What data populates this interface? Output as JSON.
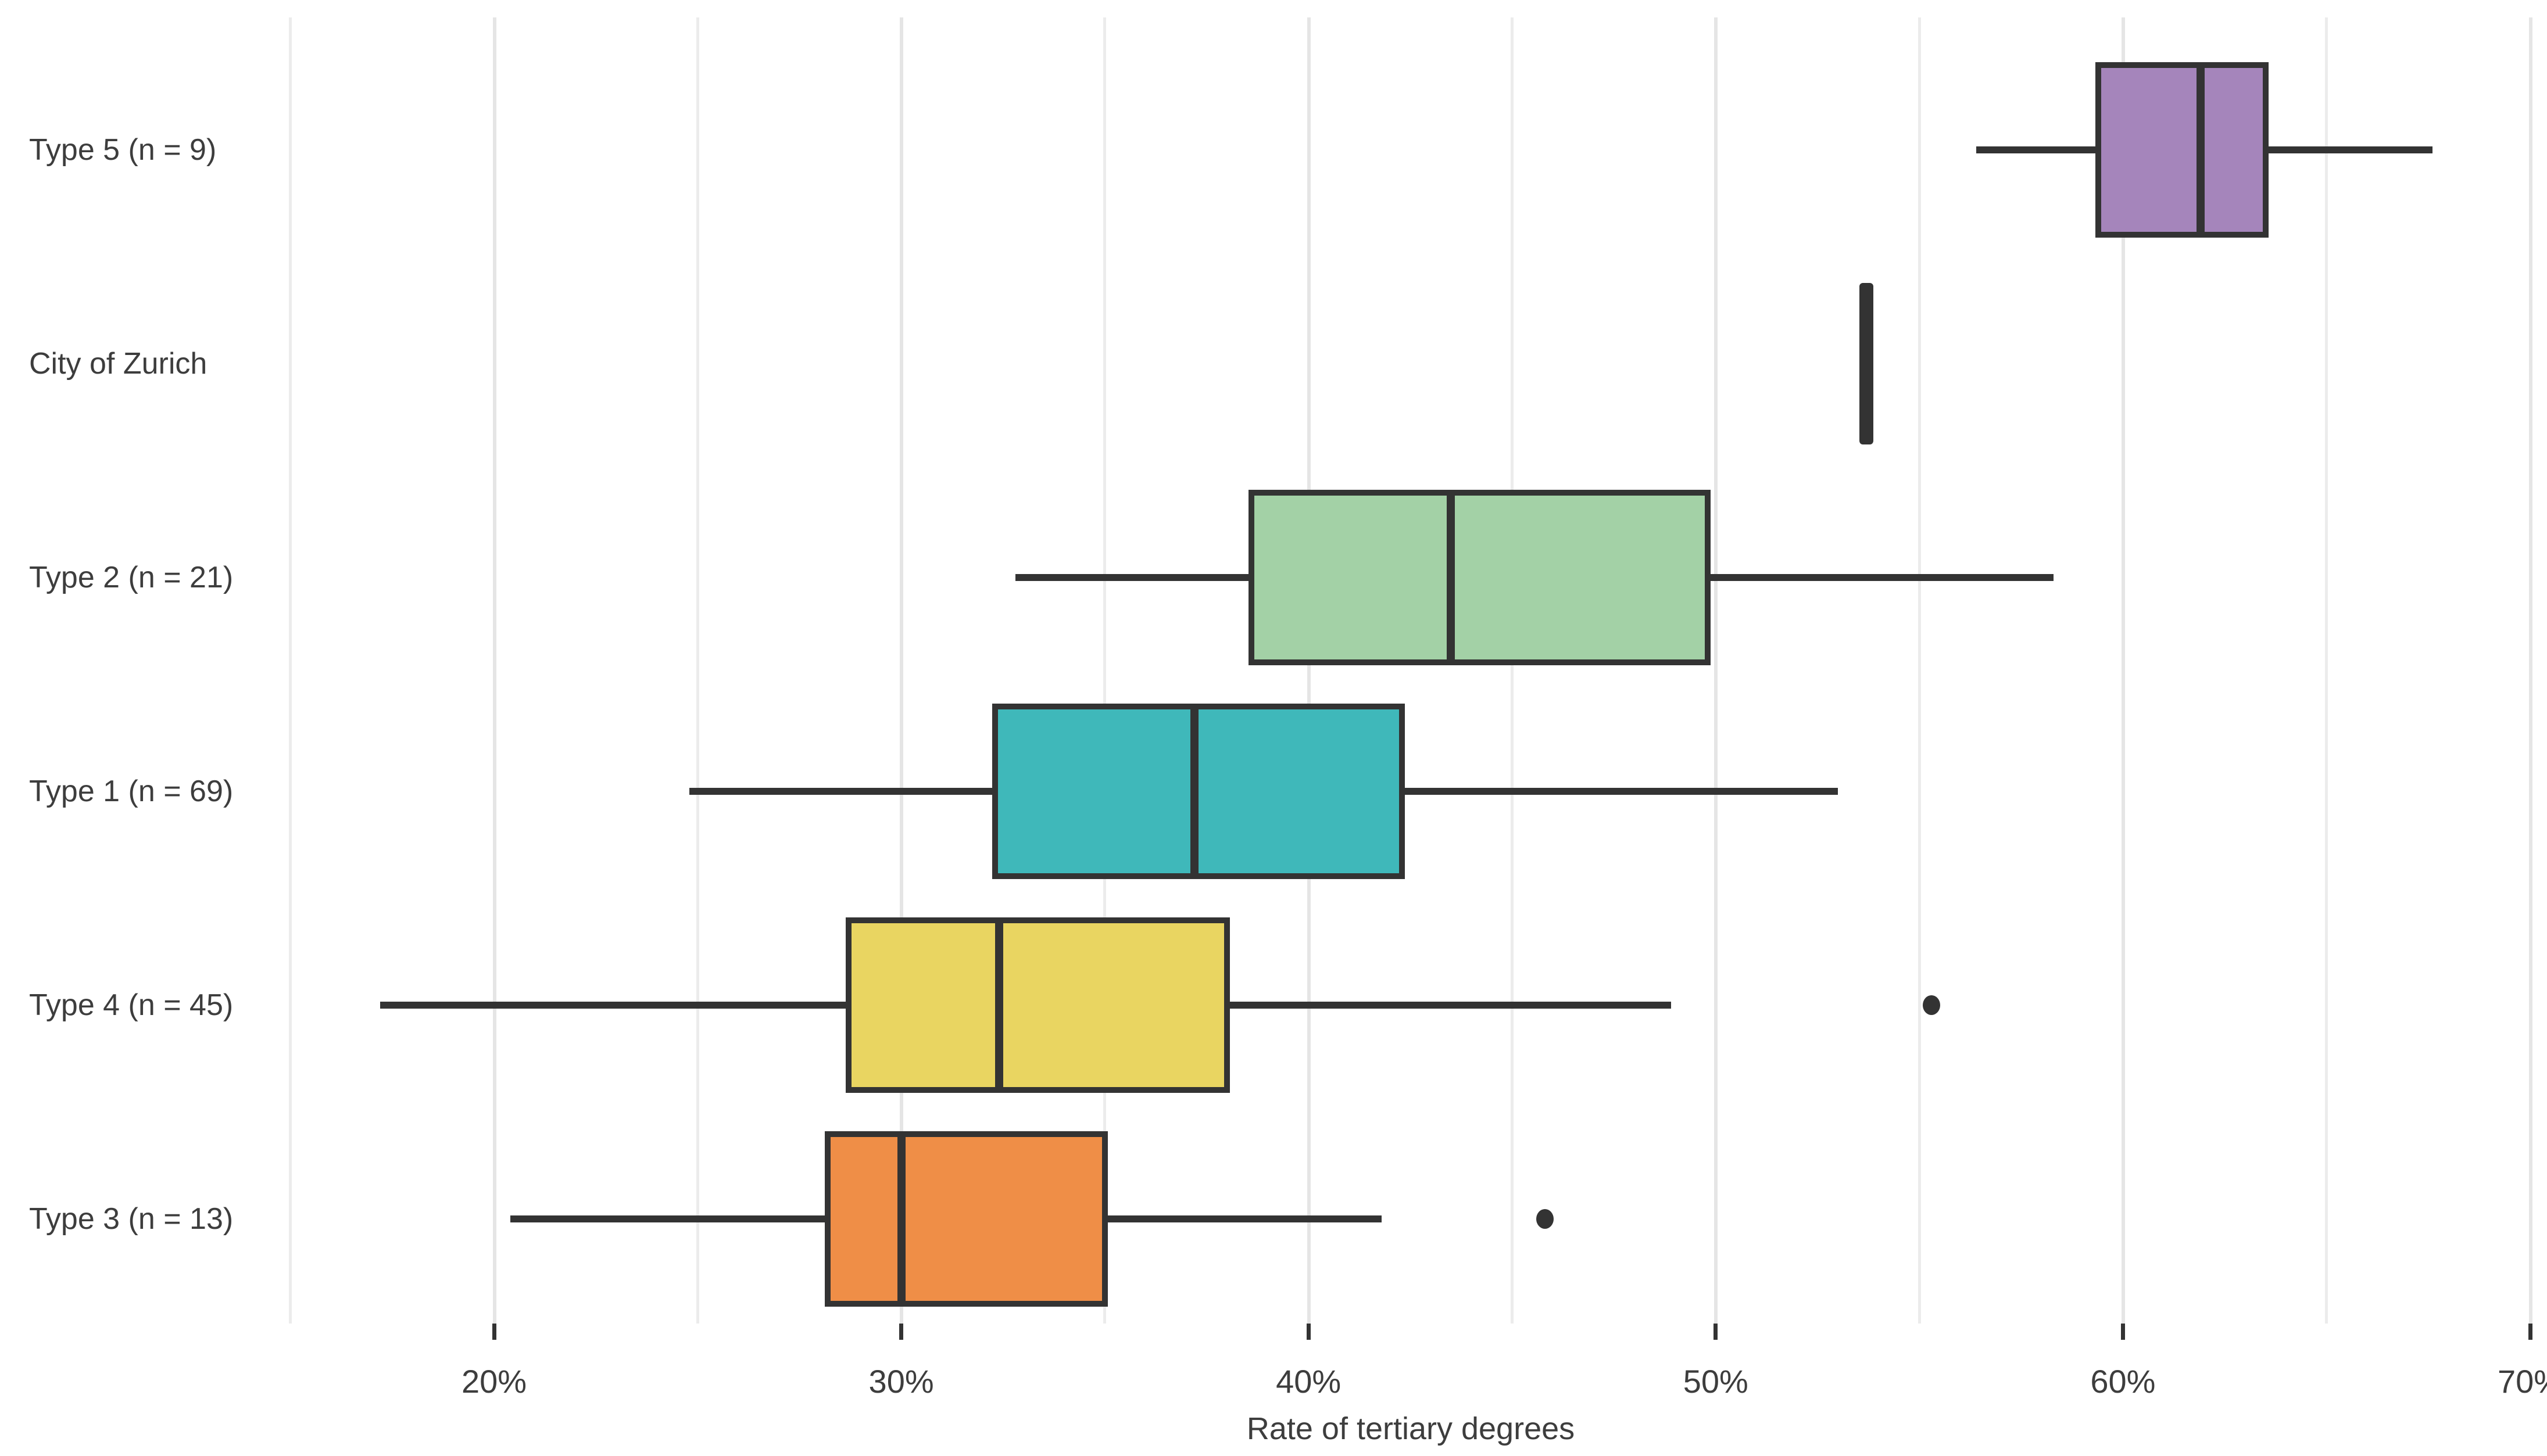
{
  "chart_data": {
    "type": "boxplot",
    "orientation": "horizontal",
    "title": "",
    "xlabel": "Rate of tertiary degrees",
    "ylabel": "",
    "x_axis": {
      "unit": "%",
      "range": [
        15.0,
        70.4
      ],
      "tick_values": [
        20,
        30,
        40,
        50,
        60,
        70
      ],
      "tick_labels": [
        "20%",
        "30%",
        "40%",
        "50%",
        "60%",
        "70%"
      ],
      "gridline_values": [
        15,
        20,
        25,
        30,
        35,
        40,
        45,
        50,
        55,
        60,
        65,
        70
      ],
      "grid_on": true
    },
    "categories": [
      "Type 5 (n = 9)",
      "City of Zurich",
      "Type 2 (n = 21)",
      "Type 1 (n = 69)",
      "Type 4 (n = 45)",
      "Type 3 (n = 13)"
    ],
    "series": [
      {
        "label": "Type 5 (n = 9)",
        "color": "#a585bb",
        "whisker_low": 56.4,
        "q1": 59.4,
        "median": 61.9,
        "q3": 63.5,
        "whisker_high": 67.6,
        "outliers": []
      },
      {
        "label": "City of Zurich",
        "color": "#333333",
        "single_value": 53.7,
        "outliers": []
      },
      {
        "label": "Type 2 (n = 21)",
        "color": "#a3d1a6",
        "whisker_low": 32.8,
        "q1": 38.6,
        "median": 43.5,
        "q3": 49.8,
        "whisker_high": 58.3,
        "outliers": []
      },
      {
        "label": "Type 1 (n = 69)",
        "color": "#3fb8ba",
        "whisker_low": 24.8,
        "q1": 32.3,
        "median": 37.2,
        "q3": 42.3,
        "whisker_high": 53.0,
        "outliers": []
      },
      {
        "label": "Type 4 (n = 45)",
        "color": "#e9d561",
        "whisker_low": 17.2,
        "q1": 28.7,
        "median": 32.4,
        "q3": 38.0,
        "whisker_high": 48.9,
        "outliers": [
          55.3
        ]
      },
      {
        "label": "Type 3 (n = 13)",
        "color": "#ef8e47",
        "whisker_low": 20.4,
        "q1": 28.2,
        "median": 30.0,
        "q3": 35.0,
        "whisker_high": 41.8,
        "outliers": [
          45.8
        ]
      }
    ],
    "styles": {
      "background": "#ffffff",
      "grid_color": "#ececec",
      "stroke_color": "#333333",
      "text_color": "#3d3d3d"
    }
  }
}
